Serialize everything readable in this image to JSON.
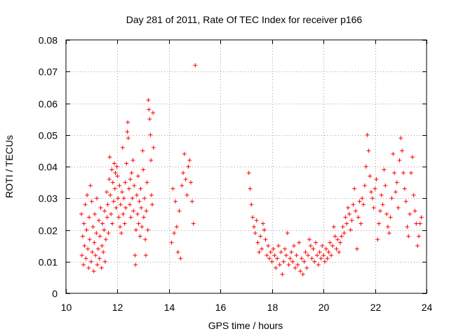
{
  "chart_data": {
    "type": "scatter",
    "title": "Day 281 of 2011, Rate Of TEC Index for receiver p166",
    "xlabel": "GPS time / hours",
    "ylabel": "ROTI / TECUs",
    "xlim": [
      10,
      24
    ],
    "ylim": [
      0,
      0.08
    ],
    "x_ticks": [
      10,
      12,
      14,
      16,
      18,
      20,
      22,
      24
    ],
    "x_tick_labels": [
      "10",
      "12",
      "14",
      "16",
      "18",
      "20",
      "22",
      "24"
    ],
    "y_ticks": [
      0,
      0.01,
      0.02,
      0.03,
      0.04,
      0.05,
      0.06,
      0.07,
      0.08
    ],
    "y_tick_labels": [
      "0",
      "0.01",
      "0.02",
      "0.03",
      "0.04",
      "0.05",
      "0.06",
      "0.07",
      "0.08"
    ],
    "grid": true,
    "marker": "+",
    "series": [
      {
        "name": "ROTI",
        "color": "#ff0000",
        "points": [
          [
            10.6,
            0.025
          ],
          [
            10.62,
            0.012
          ],
          [
            10.65,
            0.018
          ],
          [
            10.68,
            0.009
          ],
          [
            10.7,
            0.022
          ],
          [
            10.72,
            0.015
          ],
          [
            10.75,
            0.028
          ],
          [
            10.78,
            0.011
          ],
          [
            10.8,
            0.02
          ],
          [
            10.82,
            0.031
          ],
          [
            10.85,
            0.014
          ],
          [
            10.88,
            0.008
          ],
          [
            10.9,
            0.024
          ],
          [
            10.92,
            0.017
          ],
          [
            10.95,
            0.034
          ],
          [
            10.98,
            0.01
          ],
          [
            11.0,
            0.029
          ],
          [
            11.02,
            0.013
          ],
          [
            11.05,
            0.021
          ],
          [
            11.08,
            0.007
          ],
          [
            11.1,
            0.016
          ],
          [
            11.12,
            0.025
          ],
          [
            11.15,
            0.012
          ],
          [
            11.18,
            0.019
          ],
          [
            11.2,
            0.03
          ],
          [
            11.22,
            0.009
          ],
          [
            11.25,
            0.014
          ],
          [
            11.28,
            0.023
          ],
          [
            11.3,
            0.011
          ],
          [
            11.32,
            0.018
          ],
          [
            11.35,
            0.027
          ],
          [
            11.38,
            0.008
          ],
          [
            11.4,
            0.015
          ],
          [
            11.42,
            0.022
          ],
          [
            11.45,
            0.013
          ],
          [
            11.48,
            0.02
          ],
          [
            11.5,
            0.026
          ],
          [
            11.52,
            0.01
          ],
          [
            11.55,
            0.017
          ],
          [
            11.58,
            0.032
          ],
          [
            11.6,
            0.024
          ],
          [
            11.62,
            0.028
          ],
          [
            11.65,
            0.019
          ],
          [
            11.68,
            0.036
          ],
          [
            11.7,
            0.043
          ],
          [
            11.72,
            0.031
          ],
          [
            11.75,
            0.025
          ],
          [
            11.78,
            0.039
          ],
          [
            11.8,
            0.022
          ],
          [
            11.82,
            0.035
          ],
          [
            11.85,
            0.029
          ],
          [
            11.88,
            0.041
          ],
          [
            11.9,
            0.033
          ],
          [
            11.92,
            0.038
          ],
          [
            11.95,
            0.027
          ],
          [
            11.98,
            0.04
          ],
          [
            12.0,
            0.037
          ],
          [
            12.02,
            0.03
          ],
          [
            12.05,
            0.024
          ],
          [
            12.08,
            0.034
          ],
          [
            12.1,
            0.021
          ],
          [
            12.12,
            0.028
          ],
          [
            12.15,
            0.019
          ],
          [
            12.18,
            0.032
          ],
          [
            12.2,
            0.046
          ],
          [
            12.22,
            0.025
          ],
          [
            12.25,
            0.03
          ],
          [
            12.28,
            0.022
          ],
          [
            12.3,
            0.035
          ],
          [
            12.32,
            0.027
          ],
          [
            12.35,
            0.041
          ],
          [
            12.38,
            0.051
          ],
          [
            12.4,
            0.054
          ],
          [
            12.42,
            0.049
          ],
          [
            12.45,
            0.033
          ],
          [
            12.48,
            0.028
          ],
          [
            12.5,
            0.036
          ],
          [
            12.52,
            0.024
          ],
          [
            12.55,
            0.038
          ],
          [
            12.58,
            0.03
          ],
          [
            12.6,
            0.042
          ],
          [
            12.62,
            0.026
          ],
          [
            12.65,
            0.034
          ],
          [
            12.68,
            0.012
          ],
          [
            12.7,
            0.009
          ],
          [
            12.72,
            0.02
          ],
          [
            12.75,
            0.031
          ],
          [
            12.78,
            0.025
          ],
          [
            12.8,
            0.037
          ],
          [
            12.82,
            0.022
          ],
          [
            12.85,
            0.029
          ],
          [
            12.88,
            0.018
          ],
          [
            12.9,
            0.033
          ],
          [
            12.92,
            0.027
          ],
          [
            12.95,
            0.021
          ],
          [
            12.98,
            0.045
          ],
          [
            13.0,
            0.039
          ],
          [
            13.02,
            0.024
          ],
          [
            13.05,
            0.03
          ],
          [
            13.08,
            0.017
          ],
          [
            13.1,
            0.012
          ],
          [
            13.12,
            0.026
          ],
          [
            13.15,
            0.035
          ],
          [
            13.18,
            0.02
          ],
          [
            13.2,
            0.061
          ],
          [
            13.22,
            0.058
          ],
          [
            13.25,
            0.055
          ],
          [
            13.28,
            0.05
          ],
          [
            13.3,
            0.042
          ],
          [
            13.32,
            0.031
          ],
          [
            13.35,
            0.028
          ],
          [
            13.38,
            0.057
          ],
          [
            13.4,
            0.046
          ],
          [
            14.1,
            0.016
          ],
          [
            14.15,
            0.033
          ],
          [
            14.2,
            0.019
          ],
          [
            14.25,
            0.029
          ],
          [
            14.3,
            0.021
          ],
          [
            14.35,
            0.013
          ],
          [
            14.4,
            0.026
          ],
          [
            14.45,
            0.011
          ],
          [
            14.5,
            0.034
          ],
          [
            14.55,
            0.038
          ],
          [
            14.6,
            0.044
          ],
          [
            14.65,
            0.036
          ],
          [
            14.7,
            0.031
          ],
          [
            14.75,
            0.04
          ],
          [
            14.8,
            0.042
          ],
          [
            14.85,
            0.035
          ],
          [
            14.9,
            0.029
          ],
          [
            14.95,
            0.022
          ],
          [
            15.02,
            0.072
          ],
          [
            17.1,
            0.038
          ],
          [
            17.15,
            0.033
          ],
          [
            17.2,
            0.028
          ],
          [
            17.25,
            0.024
          ],
          [
            17.3,
            0.021
          ],
          [
            17.35,
            0.019
          ],
          [
            17.4,
            0.023
          ],
          [
            17.45,
            0.016
          ],
          [
            17.5,
            0.013
          ],
          [
            17.55,
            0.018
          ],
          [
            17.6,
            0.014
          ],
          [
            17.65,
            0.022
          ],
          [
            17.7,
            0.02
          ],
          [
            17.75,
            0.017
          ],
          [
            17.8,
            0.012
          ],
          [
            17.85,
            0.015
          ],
          [
            17.9,
            0.011
          ],
          [
            17.95,
            0.013
          ],
          [
            18.0,
            0.01
          ],
          [
            18.05,
            0.014
          ],
          [
            18.1,
            0.012
          ],
          [
            18.15,
            0.008
          ],
          [
            18.2,
            0.011
          ],
          [
            18.25,
            0.015
          ],
          [
            18.3,
            0.009
          ],
          [
            18.35,
            0.013
          ],
          [
            18.4,
            0.006
          ],
          [
            18.45,
            0.01
          ],
          [
            18.5,
            0.014
          ],
          [
            18.55,
            0.012
          ],
          [
            18.6,
            0.019
          ],
          [
            18.65,
            0.009
          ],
          [
            18.7,
            0.011
          ],
          [
            18.75,
            0.013
          ],
          [
            18.8,
            0.01
          ],
          [
            18.85,
            0.015
          ],
          [
            18.9,
            0.008
          ],
          [
            18.95,
            0.012
          ],
          [
            19.0,
            0.009
          ],
          [
            19.05,
            0.016
          ],
          [
            19.1,
            0.007
          ],
          [
            19.15,
            0.011
          ],
          [
            19.2,
            0.006
          ],
          [
            19.25,
            0.01
          ],
          [
            19.3,
            0.013
          ],
          [
            19.35,
            0.008
          ],
          [
            19.4,
            0.012
          ],
          [
            19.45,
            0.017
          ],
          [
            19.5,
            0.015
          ],
          [
            19.55,
            0.011
          ],
          [
            19.6,
            0.014
          ],
          [
            19.65,
            0.01
          ],
          [
            19.7,
            0.016
          ],
          [
            19.75,
            0.012
          ],
          [
            19.8,
            0.009
          ],
          [
            19.85,
            0.013
          ],
          [
            19.9,
            0.011
          ],
          [
            19.95,
            0.015
          ],
          [
            20.0,
            0.012
          ],
          [
            20.05,
            0.01
          ],
          [
            20.1,
            0.014
          ],
          [
            20.15,
            0.011
          ],
          [
            20.2,
            0.013
          ],
          [
            20.25,
            0.016
          ],
          [
            20.3,
            0.012
          ],
          [
            20.35,
            0.015
          ],
          [
            20.4,
            0.021
          ],
          [
            20.45,
            0.018
          ],
          [
            20.5,
            0.014
          ],
          [
            20.55,
            0.017
          ],
          [
            20.6,
            0.013
          ],
          [
            20.65,
            0.016
          ],
          [
            20.7,
            0.018
          ],
          [
            20.75,
            0.021
          ],
          [
            20.8,
            0.019
          ],
          [
            20.85,
            0.024
          ],
          [
            20.9,
            0.022
          ],
          [
            20.95,
            0.027
          ],
          [
            21.0,
            0.025
          ],
          [
            21.05,
            0.02
          ],
          [
            21.1,
            0.023
          ],
          [
            21.15,
            0.028
          ],
          [
            21.2,
            0.033
          ],
          [
            21.25,
            0.026
          ],
          [
            21.3,
            0.014
          ],
          [
            21.35,
            0.024
          ],
          [
            21.4,
            0.029
          ],
          [
            21.45,
            0.022
          ],
          [
            21.5,
            0.03
          ],
          [
            21.55,
            0.028
          ],
          [
            21.6,
            0.034
          ],
          [
            21.65,
            0.04
          ],
          [
            21.7,
            0.05
          ],
          [
            21.75,
            0.045
          ],
          [
            21.8,
            0.037
          ],
          [
            21.85,
            0.032
          ],
          [
            21.9,
            0.03
          ],
          [
            21.95,
            0.027
          ],
          [
            22.0,
            0.033
          ],
          [
            22.05,
            0.036
          ],
          [
            22.1,
            0.017
          ],
          [
            22.15,
            0.022
          ],
          [
            22.2,
            0.026
          ],
          [
            22.25,
            0.031
          ],
          [
            22.3,
            0.028
          ],
          [
            22.35,
            0.039
          ],
          [
            22.4,
            0.034
          ],
          [
            22.45,
            0.025
          ],
          [
            22.5,
            0.021
          ],
          [
            22.55,
            0.019
          ],
          [
            22.6,
            0.024
          ],
          [
            22.65,
            0.03
          ],
          [
            22.7,
            0.044
          ],
          [
            22.75,
            0.038
          ],
          [
            22.8,
            0.032
          ],
          [
            22.85,
            0.035
          ],
          [
            22.9,
            0.027
          ],
          [
            22.95,
            0.042
          ],
          [
            23.0,
            0.049
          ],
          [
            23.05,
            0.045
          ],
          [
            23.1,
            0.038
          ],
          [
            23.15,
            0.033
          ],
          [
            23.2,
            0.029
          ],
          [
            23.25,
            0.021
          ],
          [
            23.3,
            0.018
          ],
          [
            23.35,
            0.025
          ],
          [
            23.4,
            0.038
          ],
          [
            23.45,
            0.043
          ],
          [
            23.5,
            0.031
          ],
          [
            23.55,
            0.026
          ],
          [
            23.6,
            0.022
          ],
          [
            23.65,
            0.015
          ],
          [
            23.7,
            0.018
          ],
          [
            23.75,
            0.022
          ],
          [
            23.8,
            0.024
          ]
        ]
      }
    ]
  }
}
